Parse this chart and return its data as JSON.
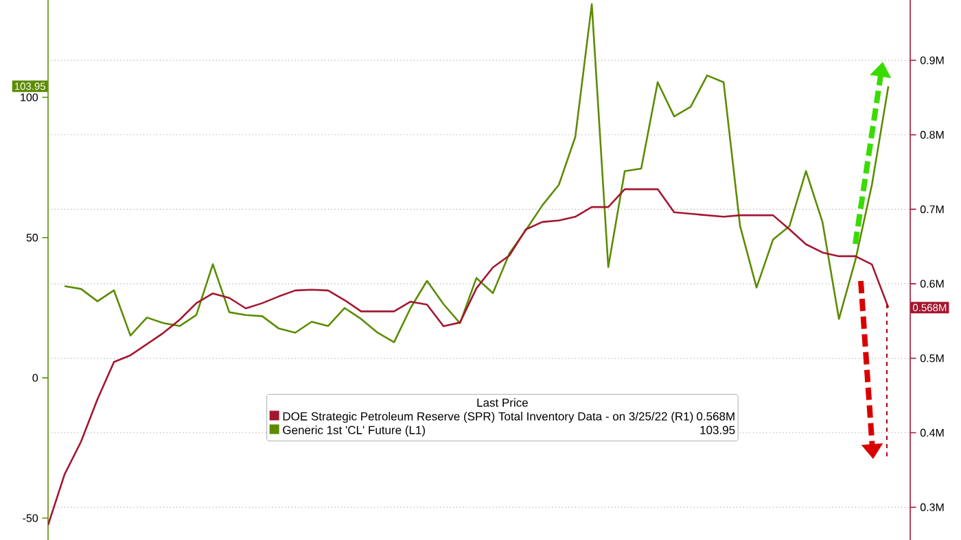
{
  "chart_data": {
    "type": "line",
    "categories": [
      null,
      null,
      null,
      null,
      null,
      null,
      null,
      null,
      null,
      null,
      null,
      null,
      null,
      null,
      null,
      null,
      null,
      null,
      null,
      null,
      null,
      null,
      null,
      null,
      null,
      null,
      null,
      null,
      null,
      null,
      null,
      null,
      null,
      null,
      null,
      null,
      null,
      null,
      null,
      null,
      null,
      null,
      null,
      null,
      null,
      null,
      null,
      null,
      null,
      null,
      null,
      null
    ],
    "series": [
      {
        "name": "DOE Strategic Petroleum Reserve (SPR) Total Inventory Data -  on 3/25/22  (R1)",
        "color": "#a3162f",
        "axis": "y2",
        "values": [
          0.276,
          0.344,
          0.388,
          0.445,
          0.495,
          0.504,
          0.519,
          0.534,
          0.552,
          0.574,
          0.587,
          0.581,
          0.567,
          0.574,
          0.583,
          0.591,
          0.592,
          0.591,
          0.578,
          0.563,
          0.563,
          0.563,
          0.576,
          0.572,
          0.543,
          0.548,
          0.594,
          0.622,
          0.638,
          0.673,
          0.683,
          0.685,
          0.69,
          0.703,
          0.703,
          0.727,
          0.727,
          0.727,
          0.696,
          0.694,
          0.692,
          0.69,
          0.692,
          0.692,
          0.692,
          0.673,
          0.653,
          0.642,
          0.637,
          0.637,
          0.626,
          0.568
        ]
      },
      {
        "name": "Generic 1st 'CL' Future  (L1)",
        "color": "#5b8c00",
        "values": [
          null,
          32.7,
          31.7,
          27.3,
          31.2,
          15.1,
          21.5,
          19.5,
          18.5,
          22.4,
          40.5,
          23.4,
          22.4,
          22.0,
          17.6,
          16.1,
          20.0,
          18.5,
          24.9,
          21.0,
          16.1,
          12.7,
          24.9,
          34.6,
          26.3,
          19.5,
          35.6,
          30.2,
          44.4,
          52.7,
          61.5,
          68.8,
          85.9,
          133.2,
          39.5,
          73.7,
          74.6,
          105.4,
          93.2,
          96.6,
          107.8,
          105.4,
          54.1,
          32.2,
          49.3,
          54.1,
          73.7,
          55.6,
          21.0,
          42.0,
          68.8,
          103.95
        ]
      }
    ],
    "ylim": [
      -57.8,
      134.7
    ],
    "yticks": [
      -50,
      0,
      50,
      100
    ],
    "y2lim": [
      0.256,
      0.981
    ],
    "y2ticks": [
      {
        "value": 0.3,
        "label": "0.3M"
      },
      {
        "value": 0.4,
        "label": "0.4M"
      },
      {
        "value": 0.5,
        "label": "0.5M"
      },
      {
        "value": 0.6,
        "label": "0.6M"
      },
      {
        "value": 0.7,
        "label": "0.7M"
      },
      {
        "value": 0.8,
        "label": "0.8M"
      },
      {
        "value": 0.9,
        "label": "0.9M"
      }
    ],
    "legend_title": "Last Price",
    "annotations": [
      "0.568M",
      "103.95",
      "0.568M",
      "103.95"
    ],
    "grid": "y",
    "legend": "bottom",
    "marker": "none",
    "line_style": "solid"
  }
}
